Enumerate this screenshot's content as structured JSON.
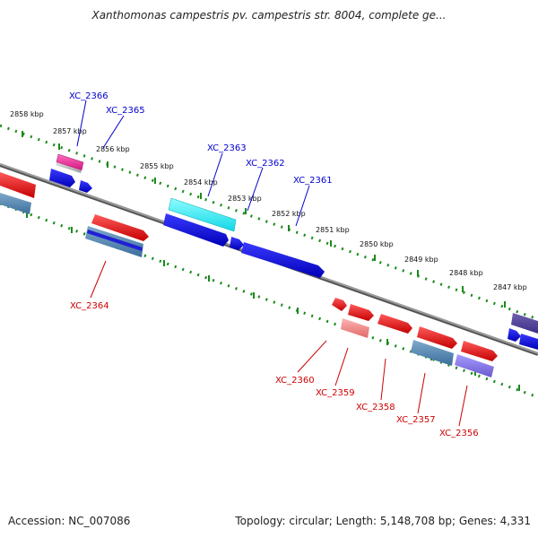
{
  "title": "Xanthomonas campestris pv. campestris str. 8004, complete ge...",
  "footer": {
    "accession": "Accession: NC_007086",
    "summary": "Topology: circular; Length: 5,148,708 bp; Genes: 4,331"
  },
  "colors": {
    "backbone": "#8a8a8a",
    "tick_track": "#1a8a1a",
    "forward_label": "#0000cc",
    "reverse_label": "#cc0000"
  },
  "scale_ticks": [
    "2858 kbp",
    "2857 kbp",
    "2856 kbp",
    "2855 kbp",
    "2854 kbp",
    "2853 kbp",
    "2852 kbp",
    "2851 kbp",
    "2850 kbp",
    "2849 kbp",
    "2848 kbp",
    "2847 kbp"
  ],
  "forward_labels": [
    "XC_2366",
    "XC_2365",
    "XC_2363",
    "XC_2362",
    "XC_2361"
  ],
  "reverse_labels": [
    "XC_2364",
    "XC_2360",
    "XC_2359",
    "XC_2358",
    "XC_2357",
    "XC_2356"
  ]
}
